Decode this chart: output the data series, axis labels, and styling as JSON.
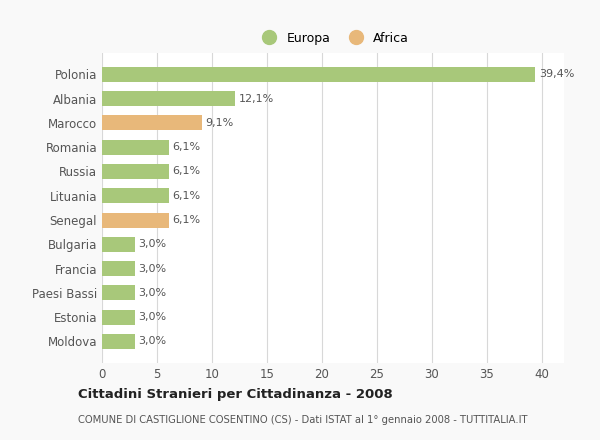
{
  "categories": [
    "Polonia",
    "Albania",
    "Marocco",
    "Romania",
    "Russia",
    "Lituania",
    "Senegal",
    "Bulgaria",
    "Francia",
    "Paesi Bassi",
    "Estonia",
    "Moldova"
  ],
  "values": [
    39.4,
    12.1,
    9.1,
    6.1,
    6.1,
    6.1,
    6.1,
    3.0,
    3.0,
    3.0,
    3.0,
    3.0
  ],
  "labels": [
    "39,4%",
    "12,1%",
    "9,1%",
    "6,1%",
    "6,1%",
    "6,1%",
    "6,1%",
    "3,0%",
    "3,0%",
    "3,0%",
    "3,0%",
    "3,0%"
  ],
  "continents": [
    "Europa",
    "Europa",
    "Africa",
    "Europa",
    "Europa",
    "Europa",
    "Africa",
    "Europa",
    "Europa",
    "Europa",
    "Europa",
    "Europa"
  ],
  "color_europa": "#a8c87a",
  "color_africa": "#e8b87a",
  "legend_europa": "Europa",
  "legend_africa": "Africa",
  "xlim": [
    0,
    42
  ],
  "xticks": [
    0,
    5,
    10,
    15,
    20,
    25,
    30,
    35,
    40
  ],
  "title": "Cittadini Stranieri per Cittadinanza - 2008",
  "subtitle": "COMUNE DI CASTIGLIONE COSENTINO (CS) - Dati ISTAT al 1° gennaio 2008 - TUTTITALIA.IT",
  "background_color": "#f9f9f9",
  "bar_background": "#ffffff",
  "grid_color": "#d8d8d8"
}
